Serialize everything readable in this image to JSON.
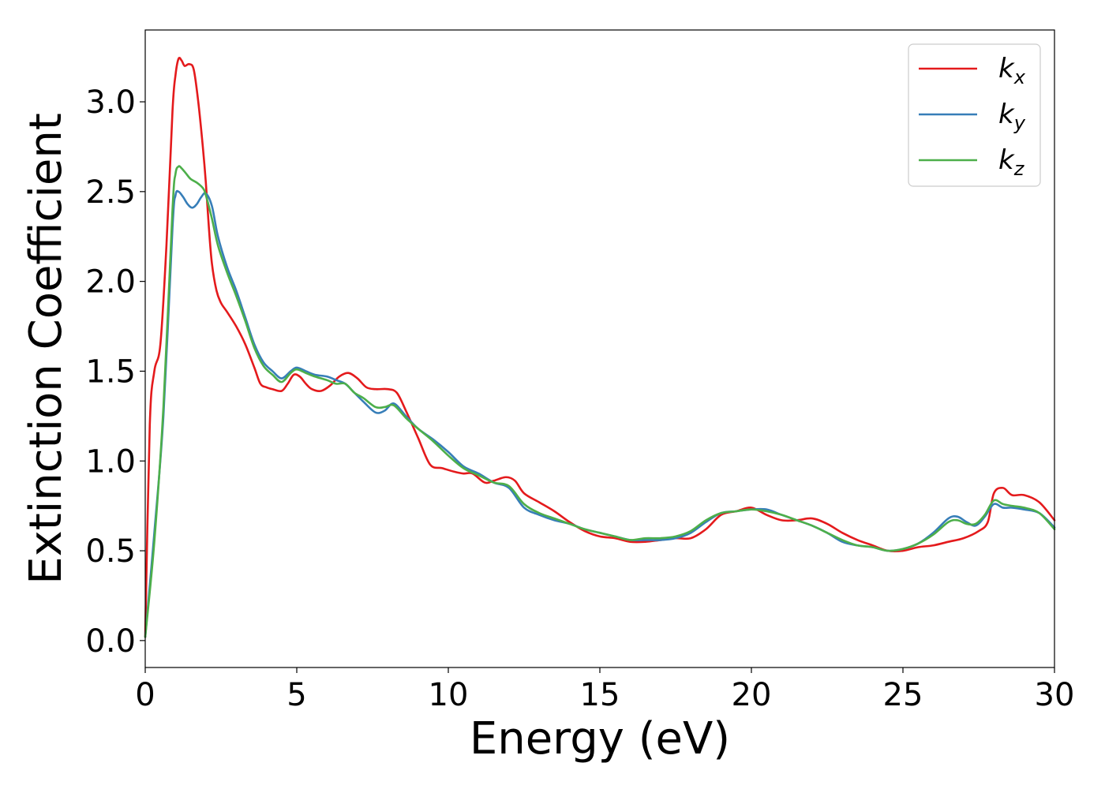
{
  "chart_data": {
    "type": "line",
    "xlabel": "Energy (eV)",
    "ylabel": "Extinction Coefficient",
    "xlim": [
      0,
      30
    ],
    "ylim": [
      -0.15,
      3.4
    ],
    "xticks": [
      0,
      5,
      10,
      15,
      20,
      25,
      30
    ],
    "xtick_labels": [
      "0",
      "5",
      "10",
      "15",
      "20",
      "25",
      "30"
    ],
    "yticks": [
      0.0,
      0.5,
      1.0,
      1.5,
      2.0,
      2.5,
      3.0
    ],
    "ytick_labels": [
      "0.0",
      "0.5",
      "1.0",
      "1.5",
      "2.0",
      "2.5",
      "3.0"
    ],
    "grid": false,
    "legend_position": "top-right",
    "series": [
      {
        "name": "k",
        "subscript": "x",
        "color": "#e41a1c",
        "x": [
          0,
          0.15,
          0.3,
          0.5,
          0.7,
          0.9,
          1.0,
          1.1,
          1.2,
          1.3,
          1.45,
          1.6,
          1.75,
          1.9,
          2.0,
          2.1,
          2.2,
          2.35,
          2.5,
          2.7,
          3.0,
          3.3,
          3.6,
          3.8,
          4.0,
          4.2,
          4.5,
          4.7,
          4.9,
          5.1,
          5.3,
          5.5,
          5.8,
          6.1,
          6.4,
          6.7,
          7.0,
          7.3,
          7.6,
          8.0,
          8.3,
          8.6,
          9.0,
          9.4,
          9.8,
          10.2,
          10.5,
          10.8,
          11.2,
          11.5,
          11.9,
          12.2,
          12.5,
          13.0,
          13.5,
          14.0,
          14.5,
          15.0,
          15.5,
          16.0,
          16.5,
          17.0,
          17.5,
          18.0,
          18.5,
          19.0,
          19.5,
          20.0,
          20.5,
          21.0,
          21.5,
          22.0,
          22.5,
          23.0,
          23.5,
          24.0,
          24.5,
          25.0,
          25.5,
          26.0,
          26.5,
          27.0,
          27.5,
          27.8,
          28.0,
          28.3,
          28.6,
          29.0,
          29.5,
          30.0
        ],
        "y": [
          0.02,
          1.2,
          1.5,
          1.65,
          2.2,
          2.95,
          3.15,
          3.24,
          3.23,
          3.2,
          3.21,
          3.18,
          3.0,
          2.75,
          2.55,
          2.3,
          2.1,
          1.95,
          1.88,
          1.83,
          1.75,
          1.65,
          1.52,
          1.43,
          1.41,
          1.4,
          1.39,
          1.43,
          1.48,
          1.47,
          1.43,
          1.4,
          1.39,
          1.42,
          1.47,
          1.49,
          1.46,
          1.41,
          1.4,
          1.4,
          1.38,
          1.28,
          1.13,
          0.98,
          0.96,
          0.94,
          0.93,
          0.93,
          0.88,
          0.89,
          0.91,
          0.89,
          0.82,
          0.77,
          0.72,
          0.66,
          0.61,
          0.58,
          0.57,
          0.55,
          0.55,
          0.56,
          0.57,
          0.57,
          0.62,
          0.7,
          0.72,
          0.74,
          0.7,
          0.67,
          0.67,
          0.68,
          0.65,
          0.6,
          0.56,
          0.53,
          0.5,
          0.5,
          0.52,
          0.53,
          0.55,
          0.57,
          0.61,
          0.66,
          0.82,
          0.85,
          0.81,
          0.81,
          0.77,
          0.67
        ]
      },
      {
        "name": "k",
        "subscript": "y",
        "color": "#377eb8",
        "x": [
          0,
          0.3,
          0.6,
          0.9,
          1.0,
          1.1,
          1.25,
          1.4,
          1.55,
          1.7,
          1.85,
          2.0,
          2.2,
          2.4,
          2.7,
          3.0,
          3.3,
          3.6,
          3.9,
          4.2,
          4.5,
          4.8,
          5.0,
          5.3,
          5.6,
          6.0,
          6.3,
          6.6,
          6.9,
          7.2,
          7.6,
          7.9,
          8.2,
          8.6,
          9.0,
          9.5,
          10.0,
          10.5,
          11.0,
          11.5,
          12.0,
          12.5,
          13.0,
          13.5,
          14.0,
          14.5,
          15.0,
          15.5,
          16.0,
          16.5,
          17.0,
          17.5,
          18.0,
          18.5,
          19.0,
          19.5,
          20.0,
          20.5,
          21.0,
          21.5,
          22.0,
          22.5,
          23.0,
          23.5,
          24.0,
          24.5,
          25.0,
          25.5,
          26.0,
          26.5,
          26.8,
          27.1,
          27.4,
          27.7,
          28.0,
          28.3,
          28.6,
          29.0,
          29.5,
          30.0
        ],
        "y": [
          0.02,
          0.6,
          1.25,
          2.3,
          2.48,
          2.5,
          2.47,
          2.43,
          2.41,
          2.43,
          2.47,
          2.49,
          2.42,
          2.25,
          2.08,
          1.95,
          1.8,
          1.65,
          1.55,
          1.5,
          1.46,
          1.5,
          1.52,
          1.5,
          1.48,
          1.47,
          1.45,
          1.43,
          1.38,
          1.33,
          1.27,
          1.28,
          1.32,
          1.25,
          1.18,
          1.12,
          1.05,
          0.97,
          0.93,
          0.88,
          0.85,
          0.74,
          0.7,
          0.67,
          0.65,
          0.62,
          0.6,
          0.58,
          0.56,
          0.56,
          0.56,
          0.57,
          0.6,
          0.66,
          0.71,
          0.72,
          0.73,
          0.73,
          0.7,
          0.67,
          0.64,
          0.6,
          0.55,
          0.53,
          0.52,
          0.5,
          0.51,
          0.54,
          0.6,
          0.68,
          0.69,
          0.66,
          0.64,
          0.69,
          0.76,
          0.74,
          0.74,
          0.73,
          0.71,
          0.63
        ]
      },
      {
        "name": "k",
        "subscript": "z",
        "color": "#4daf4a",
        "x": [
          0,
          0.3,
          0.6,
          0.9,
          1.0,
          1.1,
          1.2,
          1.35,
          1.5,
          1.7,
          1.9,
          2.0,
          2.2,
          2.4,
          2.7,
          3.0,
          3.3,
          3.6,
          3.9,
          4.2,
          4.5,
          4.8,
          5.0,
          5.3,
          5.6,
          6.0,
          6.3,
          6.6,
          6.9,
          7.2,
          7.6,
          7.9,
          8.2,
          8.6,
          9.0,
          9.5,
          10.0,
          10.5,
          11.0,
          11.5,
          12.0,
          12.5,
          13.0,
          13.5,
          14.0,
          14.5,
          15.0,
          15.5,
          16.0,
          16.5,
          17.0,
          17.5,
          18.0,
          18.5,
          19.0,
          19.5,
          20.0,
          20.5,
          21.0,
          21.5,
          22.0,
          22.5,
          23.0,
          23.5,
          24.0,
          24.5,
          25.0,
          25.5,
          26.0,
          26.5,
          26.8,
          27.1,
          27.4,
          27.7,
          28.0,
          28.3,
          28.6,
          29.0,
          29.5,
          30.0
        ],
        "y": [
          0.02,
          0.55,
          1.3,
          2.4,
          2.6,
          2.64,
          2.63,
          2.6,
          2.57,
          2.55,
          2.52,
          2.48,
          2.35,
          2.2,
          2.05,
          1.92,
          1.78,
          1.63,
          1.53,
          1.48,
          1.44,
          1.49,
          1.51,
          1.49,
          1.47,
          1.45,
          1.43,
          1.43,
          1.38,
          1.35,
          1.3,
          1.3,
          1.31,
          1.24,
          1.18,
          1.11,
          1.03,
          0.96,
          0.92,
          0.88,
          0.86,
          0.76,
          0.71,
          0.68,
          0.65,
          0.62,
          0.6,
          0.58,
          0.56,
          0.57,
          0.57,
          0.58,
          0.61,
          0.67,
          0.71,
          0.72,
          0.73,
          0.72,
          0.7,
          0.67,
          0.64,
          0.6,
          0.56,
          0.53,
          0.52,
          0.5,
          0.51,
          0.54,
          0.59,
          0.66,
          0.67,
          0.65,
          0.65,
          0.7,
          0.78,
          0.76,
          0.75,
          0.74,
          0.71,
          0.62
        ]
      }
    ]
  }
}
